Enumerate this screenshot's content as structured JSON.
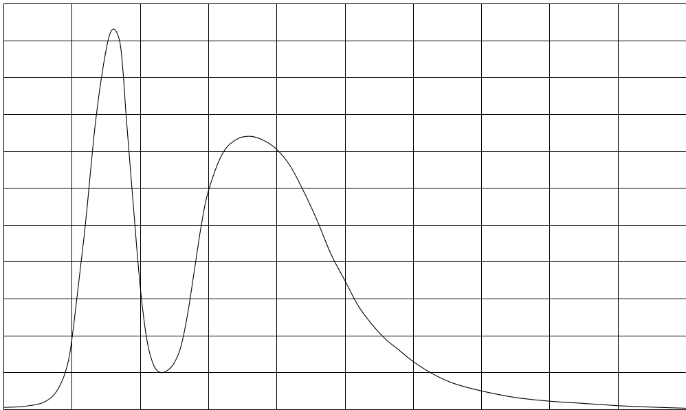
{
  "chart_data": {
    "type": "line",
    "title": "",
    "xlabel": "",
    "ylabel": "",
    "xlim": [
      0,
      10
    ],
    "ylim": [
      0,
      11
    ],
    "grid": true,
    "grid_x_divisions": 10,
    "grid_y_divisions": 11,
    "legend": "none",
    "line_color": "#000000",
    "grid_color": "#000000",
    "series": [
      {
        "x": [
          0,
          0.3,
          0.6,
          0.8,
          0.95,
          1.05,
          1.2,
          1.35,
          1.5,
          1.6,
          1.7,
          1.75,
          1.8,
          1.9,
          2.0,
          2.1,
          2.2,
          2.3,
          2.4,
          2.5,
          2.6,
          2.7,
          2.8,
          2.9,
          3.0,
          3.2,
          3.4,
          3.6,
          3.8,
          4.0,
          4.2,
          4.4,
          4.6,
          4.8,
          5.0,
          5.2,
          5.4,
          5.6,
          5.8,
          6.0,
          6.3,
          6.6,
          7.0,
          7.5,
          8.0,
          8.5,
          9.0,
          9.5,
          10.0
        ],
        "y": [
          0.05,
          0.08,
          0.2,
          0.55,
          1.3,
          2.6,
          5.0,
          7.8,
          9.7,
          10.3,
          10.0,
          9.2,
          7.9,
          5.6,
          3.4,
          1.9,
          1.2,
          1.0,
          1.05,
          1.25,
          1.7,
          2.6,
          3.8,
          5.0,
          5.9,
          6.9,
          7.3,
          7.4,
          7.3,
          7.05,
          6.6,
          5.9,
          5.1,
          4.2,
          3.5,
          2.8,
          2.3,
          1.9,
          1.6,
          1.3,
          0.95,
          0.7,
          0.5,
          0.32,
          0.22,
          0.16,
          0.1,
          0.06,
          0.03
        ]
      }
    ]
  }
}
